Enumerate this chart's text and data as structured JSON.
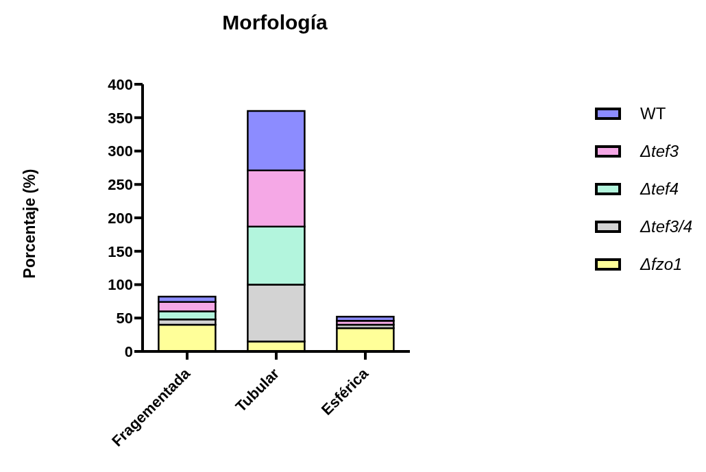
{
  "chart_data": {
    "type": "bar",
    "title": "Morfología",
    "ylabel": "Porcentaje (%)",
    "categories": [
      "Fragementada",
      "Tubular",
      "Esférica"
    ],
    "stacked": true,
    "ylim": [
      0,
      400
    ],
    "yticks": [
      0,
      50,
      100,
      150,
      200,
      250,
      300,
      350,
      400
    ],
    "grid": false,
    "legend": "right",
    "series": [
      {
        "name": "Δfzo1",
        "color": "#ffff99",
        "values": [
          40,
          15,
          35
        ]
      },
      {
        "name": "Δtef3/4",
        "color": "#d3d3d3",
        "values": [
          8,
          85,
          5
        ]
      },
      {
        "name": "Δtef4",
        "color": "#b3f5dd",
        "values": [
          12,
          87,
          null
        ]
      },
      {
        "name": "Δtef3",
        "color": "#f5a8e6",
        "values": [
          14,
          84,
          6
        ]
      },
      {
        "name": "WT",
        "color": "#8c8cff",
        "values": [
          8,
          89,
          6
        ]
      }
    ]
  }
}
